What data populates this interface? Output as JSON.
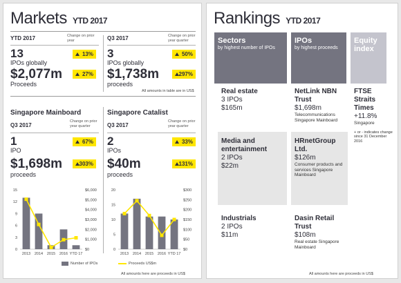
{
  "markets": {
    "title": "Markets",
    "period": "YTD 2017",
    "ytd": {
      "label": "YTD 2017",
      "change_label": "Change on prior year",
      "ipos": "13",
      "ipos_label": "IPOs globally",
      "ipos_change": "13%",
      "proceeds": "$2,077m",
      "proceeds_label": "Proceeds",
      "proceeds_change": "27%"
    },
    "q3": {
      "label": "Q3 2017",
      "change_label": "Change on prior year quarter",
      "ipos": "3",
      "ipos_label": "IPOs globally",
      "ipos_change": "50%",
      "proceeds": "$1,738m",
      "proceeds_label": "proceeds",
      "proceeds_change": "297%"
    },
    "note_table": "All amounts in table are in US$",
    "mainboard": {
      "title": "Singapore Mainboard",
      "period": "Q3 2017",
      "change_label": "Change on prior year quarter",
      "ipos": "1",
      "ipos_label": "IPO",
      "ipos_change": "67%",
      "proceeds": "$1,698m",
      "proceeds_label": "proceeds",
      "proceeds_change": "303%"
    },
    "catalist": {
      "title": "Singapore Catalist",
      "period": "Q3 2017",
      "change_label": "Change on prior year quarter",
      "ipos": "2",
      "ipos_label": "IPOs",
      "ipos_change": "33%",
      "proceeds": "$40m",
      "proceeds_label": "proceeds",
      "proceeds_change": "131%"
    },
    "legend": {
      "ipos": "Number of IPOs",
      "proceeds": "Proceeds US$m"
    },
    "note_bottom": "All amounts here are proceeds in US$"
  },
  "chart_data": [
    {
      "type": "bar",
      "categories": [
        "2013",
        "2014",
        "2015",
        "2016",
        "YTD 17"
      ],
      "series": [
        {
          "name": "Number of IPOs",
          "values": [
            13,
            9,
            1,
            5,
            1
          ]
        },
        {
          "name": "Proceeds US$m",
          "values": [
            5050,
            2500,
            180,
            960,
            1150
          ]
        }
      ],
      "ylim_left": [
        0,
        15
      ],
      "yticks_left": [
        "0",
        "3",
        "6",
        "9",
        "12",
        "15"
      ],
      "ylim_right": [
        0,
        6000
      ],
      "yticks_right": [
        "$0",
        "$1,000",
        "$2,000",
        "$3,000",
        "$4,000",
        "$5,000",
        "$6,000"
      ]
    },
    {
      "type": "bar",
      "categories": [
        "2013",
        "2014",
        "2015",
        "2016",
        "YTD 17"
      ],
      "series": [
        {
          "name": "Number of IPOs",
          "values": [
            12,
            17,
            11,
            11,
            10
          ]
        },
        {
          "name": "Proceeds US$m",
          "values": [
            180,
            245,
            170,
            70,
            150
          ]
        }
      ],
      "ylim_left": [
        0,
        20
      ],
      "yticks_left": [
        "0",
        "5",
        "10",
        "15",
        "20"
      ],
      "ylim_right": [
        0,
        300
      ],
      "yticks_right": [
        "$0",
        "$50",
        "$100",
        "$150",
        "$200",
        "$250",
        "$300"
      ]
    }
  ],
  "rankings": {
    "title": "Rankings",
    "period": "YTD 2017",
    "headers": [
      {
        "title": "Sectors",
        "sub": "by highest number of IPOs"
      },
      {
        "title": "IPOs",
        "sub": "by highest proceeds"
      },
      {
        "title": "Equity index",
        "sub": ""
      }
    ],
    "sectors": [
      {
        "name": "Real estate",
        "ipos": "3 IPOs",
        "value": "$165m"
      },
      {
        "name": "Media and entertainment",
        "ipos": "2 IPOs",
        "value": "$22m"
      },
      {
        "name": "Industrials",
        "ipos": "2 IPOs",
        "value": "$11m"
      }
    ],
    "ipos": [
      {
        "name": "NetLink NBN Trust",
        "value": "$1,698m",
        "desc": "Telecommunications Singapore Mainboard"
      },
      {
        "name": "HRnetGroup Ltd.",
        "value": "$126m",
        "desc": "Consumer products and services Singapore Mainboard"
      },
      {
        "name": "Dasin Retail Trust",
        "value": "$108m",
        "desc": "Real estate Singapore Mainboard"
      }
    ],
    "index": {
      "name": "FTSE Straits Times",
      "change": "+11.8%",
      "market": "Singapore",
      "note": "+ or - indicates change since 31 December 2016"
    },
    "note_bottom": "All amounts here are proceeds in US$"
  },
  "colors": {
    "accent": "#ffe600",
    "bar": "#747480",
    "dark": "#2e2e38",
    "header": "#747480",
    "header_light": "#c4c4cd"
  }
}
